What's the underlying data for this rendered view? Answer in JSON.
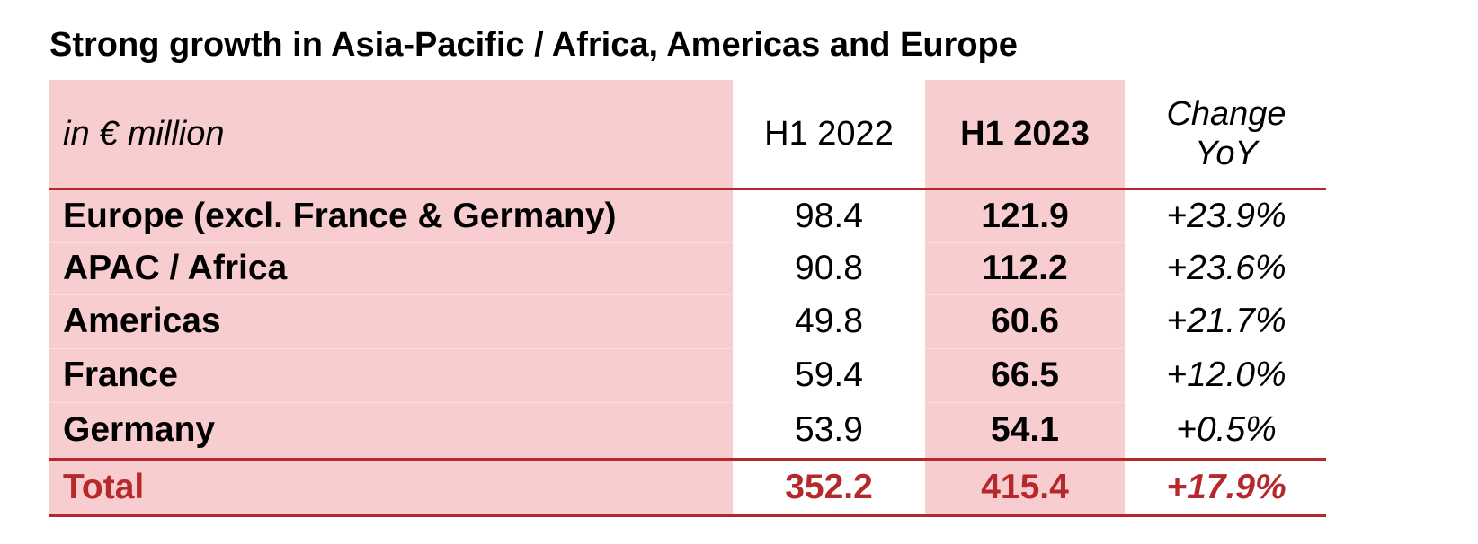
{
  "chart_data": {
    "type": "table",
    "title": "Strong growth in Asia-Pacific / Africa, Americas and Europe",
    "unit_label": "in € million",
    "columns": [
      "H1 2022",
      "H1 2023",
      "Change",
      "YoY"
    ],
    "rows": [
      {
        "label": "Europe (excl. France & Germany)",
        "h1_2022": "98.4",
        "h1_2023": "121.9",
        "change": "+23.9%"
      },
      {
        "label": "APAC / Africa",
        "h1_2022": "90.8",
        "h1_2023": "112.2",
        "change": "+23.6%"
      },
      {
        "label": "Americas",
        "h1_2022": "49.8",
        "h1_2023": "60.6",
        "change": "+21.7%"
      },
      {
        "label": "France",
        "h1_2022": "59.4",
        "h1_2023": "66.5",
        "change": "+12.0%"
      },
      {
        "label": "Germany",
        "h1_2022": "53.9",
        "h1_2023": "54.1",
        "change": "+0.5%"
      }
    ],
    "total": {
      "label": "Total",
      "h1_2022": "352.2",
      "h1_2023": "415.4",
      "change": "+17.9%"
    }
  },
  "colors": {
    "shade": "#f7cdd0",
    "accent": "#b5282b"
  }
}
